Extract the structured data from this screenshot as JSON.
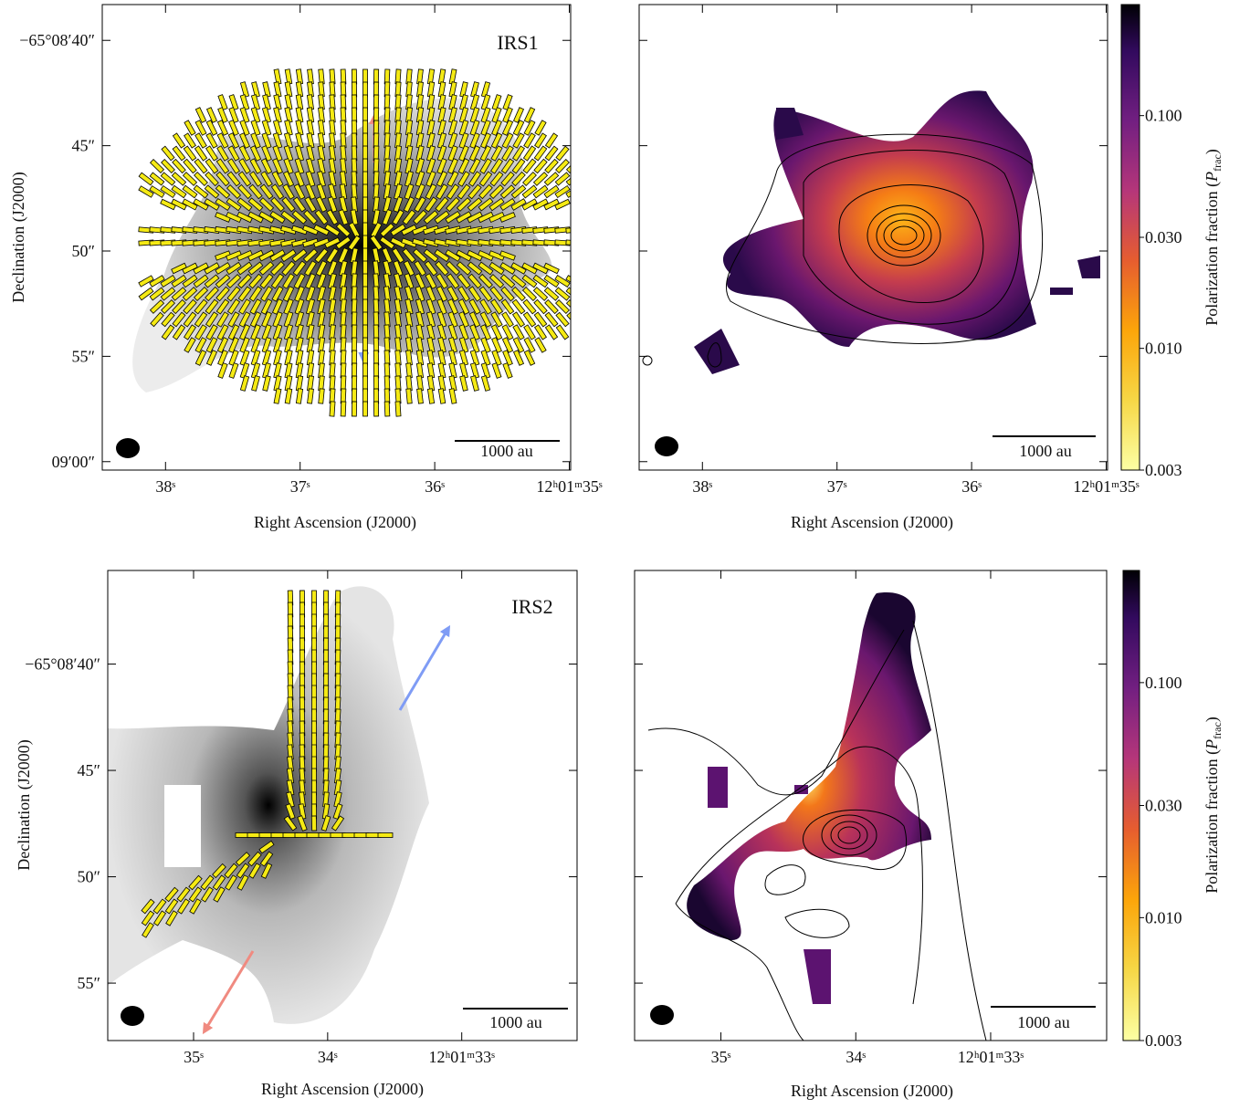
{
  "chart_data": [
    {
      "type": "image",
      "label": "IRS1",
      "xlabel": "Right Ascension (J2000)",
      "ylabel": "Declination (J2000)",
      "xlim": [
        38.47,
        34.99
      ],
      "ylim": [
        60.4,
        38.3
      ],
      "xticks": [
        {
          "value": 38,
          "label": "38ˢ"
        },
        {
          "value": 37,
          "label": "37ˢ"
        },
        {
          "value": 36,
          "label": "36ˢ"
        },
        {
          "value": 35,
          "label": "12ʰ01ᵐ35ˢ"
        }
      ],
      "yticks": [
        {
          "value": 40,
          "label": "−65°08′40″"
        },
        {
          "value": 45,
          "label": "45″"
        },
        {
          "value": 50,
          "label": "50″"
        },
        {
          "value": 55,
          "label": "55″"
        },
        {
          "value": 60,
          "label": "09′00″"
        }
      ],
      "ytick_labels": true,
      "scalebar": "1000 au"
    },
    {
      "type": "image",
      "xlabel": "Right Ascension (J2000)",
      "xlim": [
        38.47,
        34.99
      ],
      "ylim": [
        60.4,
        38.3
      ],
      "xticks": [
        {
          "value": 38,
          "label": "38ˢ"
        },
        {
          "value": 37,
          "label": "37ˢ"
        },
        {
          "value": 36,
          "label": "36ˢ"
        },
        {
          "value": 35,
          "label": "12ʰ01ᵐ35ˢ"
        }
      ],
      "yticks": [
        40,
        45,
        50,
        55,
        60
      ],
      "ytick_labels": false,
      "scalebar": "1000 au",
      "colorbar": {
        "label": [
          "Polarization fraction (",
          "P",
          "frac",
          ")"
        ],
        "log": true,
        "clim": [
          0.003,
          0.3
        ],
        "ticks": [
          0.003,
          {
            "value": 0.01,
            "label": "0.010"
          },
          {
            "value": 0.03,
            "label": "0.030"
          },
          {
            "value": 0.1,
            "label": "0.100"
          }
        ]
      }
    },
    {
      "type": "image",
      "label": "IRS2",
      "xlabel": "Right Ascension (J2000)",
      "ylabel": "Declination (J2000)",
      "xlim": [
        35.64,
        32.14
      ],
      "ylim": [
        57.7,
        35.6
      ],
      "xticks": [
        {
          "value": 35,
          "label": "35ˢ"
        },
        {
          "value": 34,
          "label": "34ˢ"
        },
        {
          "value": 33,
          "label": "12ʰ01ᵐ33ˢ"
        }
      ],
      "yticks": [
        {
          "value": 40,
          "label": "−65°08′40″"
        },
        {
          "value": 45,
          "label": "45″"
        },
        {
          "value": 50,
          "label": "50″"
        },
        {
          "value": 55,
          "label": "55″"
        }
      ],
      "ytick_labels": true,
      "scalebar": "1000 au"
    },
    {
      "type": "image",
      "xlabel": "Right Ascension (J2000)",
      "xlim": [
        35.64,
        32.14
      ],
      "ylim": [
        57.7,
        35.6
      ],
      "xticks": [
        {
          "value": 35,
          "label": "35ˢ"
        },
        {
          "value": 34,
          "label": "34ˢ"
        },
        {
          "value": 33,
          "label": "12ʰ01ᵐ33ˢ"
        }
      ],
      "yticks": [
        40,
        45,
        50,
        55
      ],
      "ytick_labels": false,
      "scalebar": "1000 au",
      "colorbar": {
        "label": [
          "Polarization fraction (",
          "P",
          "frac",
          ")"
        ],
        "log": true,
        "clim": [
          0.003,
          0.3
        ],
        "ticks": [
          0.003,
          {
            "value": 0.01,
            "label": "0.010"
          },
          {
            "value": 0.03,
            "label": "0.030"
          },
          {
            "value": 0.1,
            "label": "0.100"
          }
        ]
      }
    }
  ]
}
